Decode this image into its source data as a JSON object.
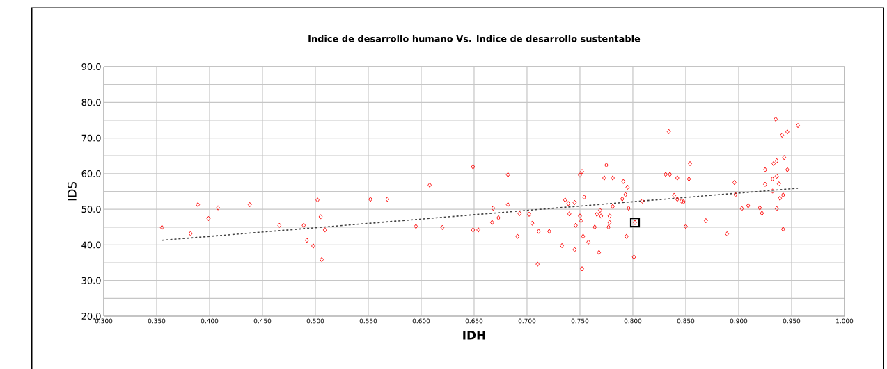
{
  "chart_data": {
    "type": "scatter",
    "title": "Indice de desarrollo humano Vs. Indice de desarrollo sustentable",
    "xlabel": "IDH",
    "ylabel": "IDS",
    "xlim": [
      0.3,
      1.0
    ],
    "xticks": [
      {
        "value": 0.3,
        "label": "0.300"
      },
      {
        "value": 0.35,
        "label": "0.350"
      },
      {
        "value": 0.4,
        "label": "0.400"
      },
      {
        "value": 0.45,
        "label": "0.450"
      },
      {
        "value": 0.5,
        "label": "0.500"
      },
      {
        "value": 0.55,
        "label": "0.550"
      },
      {
        "value": 0.6,
        "label": "0.600"
      },
      {
        "value": 0.65,
        "label": "0.650"
      },
      {
        "value": 0.7,
        "label": "0.700"
      },
      {
        "value": 0.75,
        "label": "0.750"
      },
      {
        "value": 0.8,
        "label": "0.800"
      },
      {
        "value": 0.85,
        "label": "0.850"
      },
      {
        "value": 0.9,
        "label": "0.900"
      },
      {
        "value": 0.95,
        "label": "0.950"
      },
      {
        "value": 1.0,
        "label": "1.000"
      }
    ],
    "ylim": [
      20,
      90
    ],
    "yticks": [
      {
        "value": 20,
        "label": "20.0"
      },
      {
        "value": 25,
        "label": null
      },
      {
        "value": 30,
        "label": "30.0"
      },
      {
        "value": 35,
        "label": null
      },
      {
        "value": 40,
        "label": "40.0"
      },
      {
        "value": 45,
        "label": null
      },
      {
        "value": 50,
        "label": "50.0"
      },
      {
        "value": 55,
        "label": null
      },
      {
        "value": 60,
        "label": "60.0"
      },
      {
        "value": 65,
        "label": null
      },
      {
        "value": 70,
        "label": "70.0"
      },
      {
        "value": 75,
        "label": null
      },
      {
        "value": 80,
        "label": "80.0"
      },
      {
        "value": 85,
        "label": null
      },
      {
        "value": 90,
        "label": "90.0"
      }
    ],
    "grid": true,
    "series": [
      {
        "marker": "diamond",
        "color": "#ff0000",
        "x": [
          0.355,
          0.389,
          0.382,
          0.399,
          0.408,
          0.438,
          0.466,
          0.489,
          0.502,
          0.505,
          0.492,
          0.498,
          0.509,
          0.506,
          0.552,
          0.568,
          0.608,
          0.649,
          0.682,
          0.595,
          0.62,
          0.649,
          0.654,
          0.668,
          0.682,
          0.673,
          0.667,
          0.693,
          0.702,
          0.705,
          0.711,
          0.691,
          0.71,
          0.721,
          0.775,
          0.752,
          0.75,
          0.773,
          0.781,
          0.791,
          0.795,
          0.793,
          0.79,
          0.754,
          0.736,
          0.745,
          0.739,
          0.781,
          0.796,
          0.809,
          0.74,
          0.769,
          0.766,
          0.77,
          0.778,
          0.75,
          0.751,
          0.746,
          0.778,
          0.777,
          0.764,
          0.802,
          0.794,
          0.753,
          0.758,
          0.733,
          0.745,
          0.768,
          0.801,
          0.752,
          0.834,
          0.831,
          0.835,
          0.842,
          0.839,
          0.842,
          0.846,
          0.854,
          0.853,
          0.848,
          0.85,
          0.869,
          0.889,
          0.896,
          0.897,
          0.903,
          0.909,
          0.92,
          0.922,
          0.925,
          0.925,
          0.935,
          0.956,
          0.941,
          0.946,
          0.943,
          0.933,
          0.936,
          0.946,
          0.936,
          0.932,
          0.938,
          0.932,
          0.942,
          0.939,
          0.936,
          0.942
        ],
        "values": [
          44.9,
          51.3,
          43.2,
          47.4,
          50.4,
          51.3,
          45.5,
          45.5,
          52.6,
          47.9,
          41.3,
          39.7,
          44.2,
          35.9,
          52.8,
          52.8,
          56.8,
          61.9,
          59.7,
          45.2,
          44.9,
          44.2,
          44.2,
          50.3,
          51.3,
          47.6,
          46.3,
          48.8,
          48.6,
          46.1,
          43.8,
          42.4,
          34.6,
          43.8,
          62.4,
          60.6,
          59.6,
          58.8,
          58.8,
          57.8,
          56.2,
          54.1,
          52.9,
          53.4,
          52.6,
          51.9,
          51.6,
          50.8,
          50.3,
          52.3,
          48.7,
          49.7,
          48.6,
          48.1,
          48.1,
          48.1,
          46.8,
          45.5,
          46.3,
          45.0,
          45.0,
          46.3,
          42.4,
          42.4,
          40.8,
          39.8,
          38.7,
          37.9,
          36.6,
          33.3,
          71.8,
          59.8,
          59.8,
          58.8,
          53.9,
          52.8,
          52.3,
          62.8,
          58.5,
          52.1,
          45.2,
          46.8,
          43.1,
          57.5,
          54.1,
          50.2,
          51.0,
          50.4,
          48.9,
          61.1,
          57.0,
          75.3,
          73.5,
          70.8,
          71.7,
          64.5,
          62.8,
          63.6,
          61.1,
          59.3,
          58.5,
          57.1,
          55.1,
          54.0,
          53.1,
          50.2,
          44.4
        ]
      },
      {
        "type": "scatter",
        "marker": "square",
        "color": "#000000",
        "x": [
          0.802
        ],
        "values": [
          46.3
        ]
      },
      {
        "type": "line",
        "line_style": "dashed",
        "color": "#404040",
        "x": [
          0.355,
          0.956
        ],
        "values": [
          41.3,
          55.9
        ]
      }
    ]
  }
}
